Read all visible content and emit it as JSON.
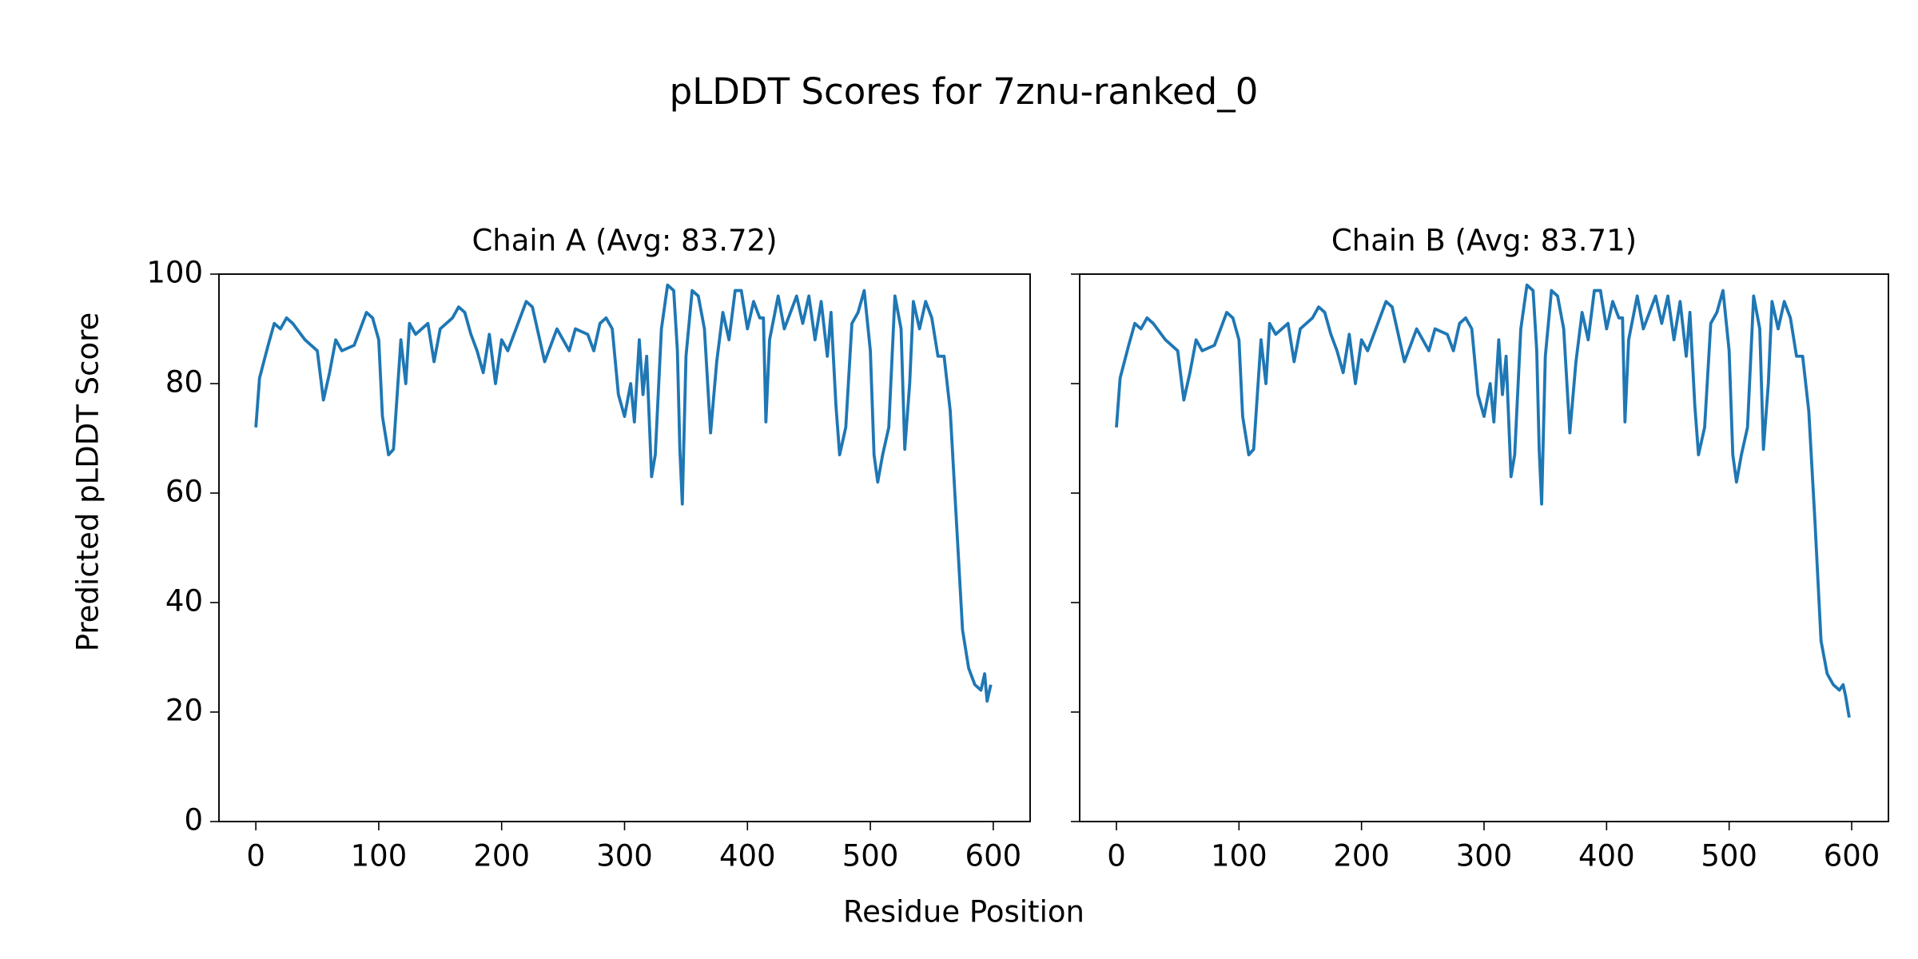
{
  "title": "pLDDT Scores for 7znu-ranked_0",
  "x_label": "Residue Position",
  "y_label": "Predicted pLDDT Score",
  "chart_data": [
    {
      "type": "line",
      "title": "Chain A (Avg: 83.72)",
      "color": "#1f77b4",
      "xlim": [
        -30,
        630
      ],
      "xticks": [
        0,
        100,
        200,
        300,
        400,
        500,
        600
      ],
      "ylim": [
        0,
        100
      ],
      "yticks": [
        0,
        20,
        40,
        60,
        80,
        100
      ],
      "x": [
        0,
        3,
        10,
        15,
        20,
        25,
        30,
        40,
        50,
        55,
        60,
        65,
        70,
        80,
        85,
        90,
        95,
        100,
        103,
        108,
        112,
        118,
        122,
        125,
        130,
        140,
        145,
        150,
        160,
        165,
        170,
        175,
        180,
        185,
        190,
        195,
        200,
        205,
        210,
        215,
        220,
        225,
        230,
        235,
        240,
        245,
        250,
        255,
        260,
        270,
        275,
        280,
        285,
        290,
        295,
        300,
        305,
        308,
        312,
        315,
        318,
        322,
        325,
        330,
        335,
        340,
        343,
        345,
        347,
        350,
        355,
        360,
        365,
        370,
        375,
        380,
        385,
        390,
        395,
        400,
        405,
        410,
        413,
        415,
        418,
        425,
        430,
        435,
        440,
        445,
        450,
        455,
        460,
        465,
        468,
        472,
        475,
        480,
        485,
        490,
        495,
        500,
        503,
        506,
        510,
        515,
        520,
        525,
        528,
        532,
        535,
        540,
        545,
        550,
        555,
        560,
        565,
        570,
        575,
        580,
        585,
        590,
        593,
        595,
        598
      ],
      "values": [
        72,
        81,
        87,
        91,
        90,
        92,
        91,
        88,
        86,
        77,
        82,
        88,
        86,
        87,
        90,
        93,
        92,
        88,
        74,
        67,
        68,
        88,
        80,
        91,
        89,
        91,
        84,
        90,
        92,
        94,
        93,
        89,
        86,
        82,
        89,
        80,
        88,
        86,
        89,
        92,
        95,
        94,
        89,
        84,
        87,
        90,
        88,
        86,
        90,
        89,
        86,
        91,
        92,
        90,
        78,
        74,
        80,
        73,
        88,
        78,
        85,
        63,
        67,
        90,
        98,
        97,
        86,
        68,
        58,
        85,
        97,
        96,
        90,
        71,
        84,
        93,
        88,
        97,
        97,
        90,
        95,
        92,
        92,
        73,
        88,
        96,
        90,
        93,
        96,
        91,
        96,
        88,
        95,
        85,
        93,
        76,
        67,
        72,
        91,
        93,
        97,
        86,
        67,
        62,
        67,
        72,
        96,
        90,
        68,
        80,
        95,
        90,
        95,
        92,
        85,
        85,
        75,
        55,
        35,
        28,
        25,
        24,
        27,
        22,
        25
      ]
    },
    {
      "type": "line",
      "title": "Chain B (Avg: 83.71)",
      "color": "#1f77b4",
      "xlim": [
        -30,
        630
      ],
      "xticks": [
        0,
        100,
        200,
        300,
        400,
        500,
        600
      ],
      "ylim": [
        0,
        100
      ],
      "yticks": [
        0,
        20,
        40,
        60,
        80,
        100
      ],
      "x": [
        0,
        3,
        10,
        15,
        20,
        25,
        30,
        40,
        50,
        55,
        60,
        65,
        70,
        80,
        85,
        90,
        95,
        100,
        103,
        108,
        112,
        118,
        122,
        125,
        130,
        140,
        145,
        150,
        160,
        165,
        170,
        175,
        180,
        185,
        190,
        195,
        200,
        205,
        210,
        215,
        220,
        225,
        230,
        235,
        240,
        245,
        250,
        255,
        260,
        270,
        275,
        280,
        285,
        290,
        295,
        300,
        305,
        308,
        312,
        315,
        318,
        322,
        325,
        330,
        335,
        340,
        343,
        345,
        347,
        350,
        355,
        360,
        365,
        370,
        375,
        380,
        385,
        390,
        395,
        400,
        405,
        410,
        413,
        415,
        418,
        425,
        430,
        435,
        440,
        445,
        450,
        455,
        460,
        465,
        468,
        472,
        475,
        480,
        485,
        490,
        495,
        500,
        503,
        506,
        510,
        515,
        520,
        525,
        528,
        532,
        535,
        540,
        545,
        550,
        555,
        560,
        565,
        570,
        575,
        580,
        585,
        590,
        593,
        595,
        598
      ],
      "values": [
        72,
        81,
        87,
        91,
        90,
        92,
        91,
        88,
        86,
        77,
        82,
        88,
        86,
        87,
        90,
        93,
        92,
        88,
        74,
        67,
        68,
        88,
        80,
        91,
        89,
        91,
        84,
        90,
        92,
        94,
        93,
        89,
        86,
        82,
        89,
        80,
        88,
        86,
        89,
        92,
        95,
        94,
        89,
        84,
        87,
        90,
        88,
        86,
        90,
        89,
        86,
        91,
        92,
        90,
        78,
        74,
        80,
        73,
        88,
        78,
        85,
        63,
        67,
        90,
        98,
        97,
        86,
        68,
        58,
        85,
        97,
        96,
        90,
        71,
        84,
        93,
        88,
        97,
        97,
        90,
        95,
        92,
        92,
        73,
        88,
        96,
        90,
        93,
        96,
        91,
        96,
        88,
        95,
        85,
        93,
        76,
        67,
        72,
        91,
        93,
        97,
        86,
        67,
        62,
        67,
        72,
        96,
        90,
        68,
        80,
        95,
        90,
        95,
        92,
        85,
        85,
        75,
        55,
        33,
        27,
        25,
        24,
        25,
        23,
        19
      ]
    }
  ]
}
